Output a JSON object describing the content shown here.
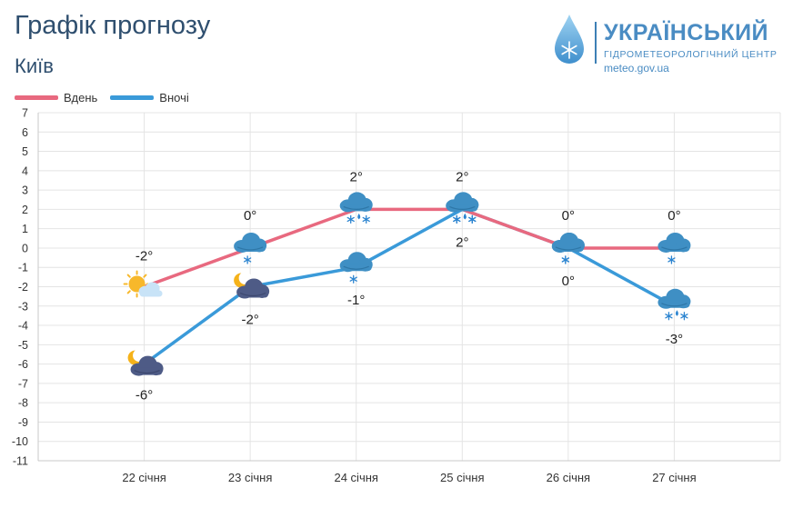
{
  "header": {
    "title": "Графік прогнозу",
    "city": "Київ"
  },
  "logo": {
    "name": "УКРАЇНСЬКИЙ",
    "subtitle": "ГІДРОМЕТЕОРОЛОГІЧНИЙ ЦЕНТР",
    "url": "meteo.gov.ua"
  },
  "legend": [
    {
      "label": "Вдень",
      "color": "#e8697f"
    },
    {
      "label": "Вночі",
      "color": "#3a9ad9"
    }
  ],
  "chart_data": {
    "type": "line",
    "title": "Графік прогнозу",
    "subtitle": "Київ",
    "categories": [
      "22 січня",
      "23 січня",
      "24 січня",
      "25 січня",
      "26 січня",
      "27 січня"
    ],
    "ylim": [
      -11,
      7
    ],
    "yticks": [
      7,
      6,
      5,
      4,
      3,
      2,
      1,
      0,
      -1,
      -2,
      -3,
      -4,
      -5,
      -6,
      -7,
      -8,
      -9,
      -10,
      -11
    ],
    "grid": true,
    "legend_position": "top-left",
    "series": [
      {
        "name": "Вдень",
        "color": "#e8697f",
        "values": [
          -2,
          0,
          2,
          2,
          0,
          0
        ],
        "labels": [
          "-2°",
          "0°",
          "2°",
          "2°",
          "0°",
          "0°"
        ],
        "icons": [
          "sun-cloud-icon",
          "cloud-snow-icon",
          "cloud-rain-snow-icon",
          "cloud-rain-snow-icon",
          "cloud-snow-icon",
          "cloud-snow-icon"
        ]
      },
      {
        "name": "Вночі",
        "color": "#3a9ad9",
        "values": [
          -6,
          -2,
          -1,
          2,
          0,
          -3
        ],
        "labels": [
          "-6°",
          "-2°",
          "-1°",
          "2°",
          "0°",
          "-3°"
        ],
        "icons": [
          "moon-cloud-icon",
          "moon-cloud-icon",
          "cloud-snow-icon",
          "cloud-rain-snow-icon",
          "cloud-snow-icon",
          "cloud-rain-snow-icon"
        ]
      }
    ]
  }
}
